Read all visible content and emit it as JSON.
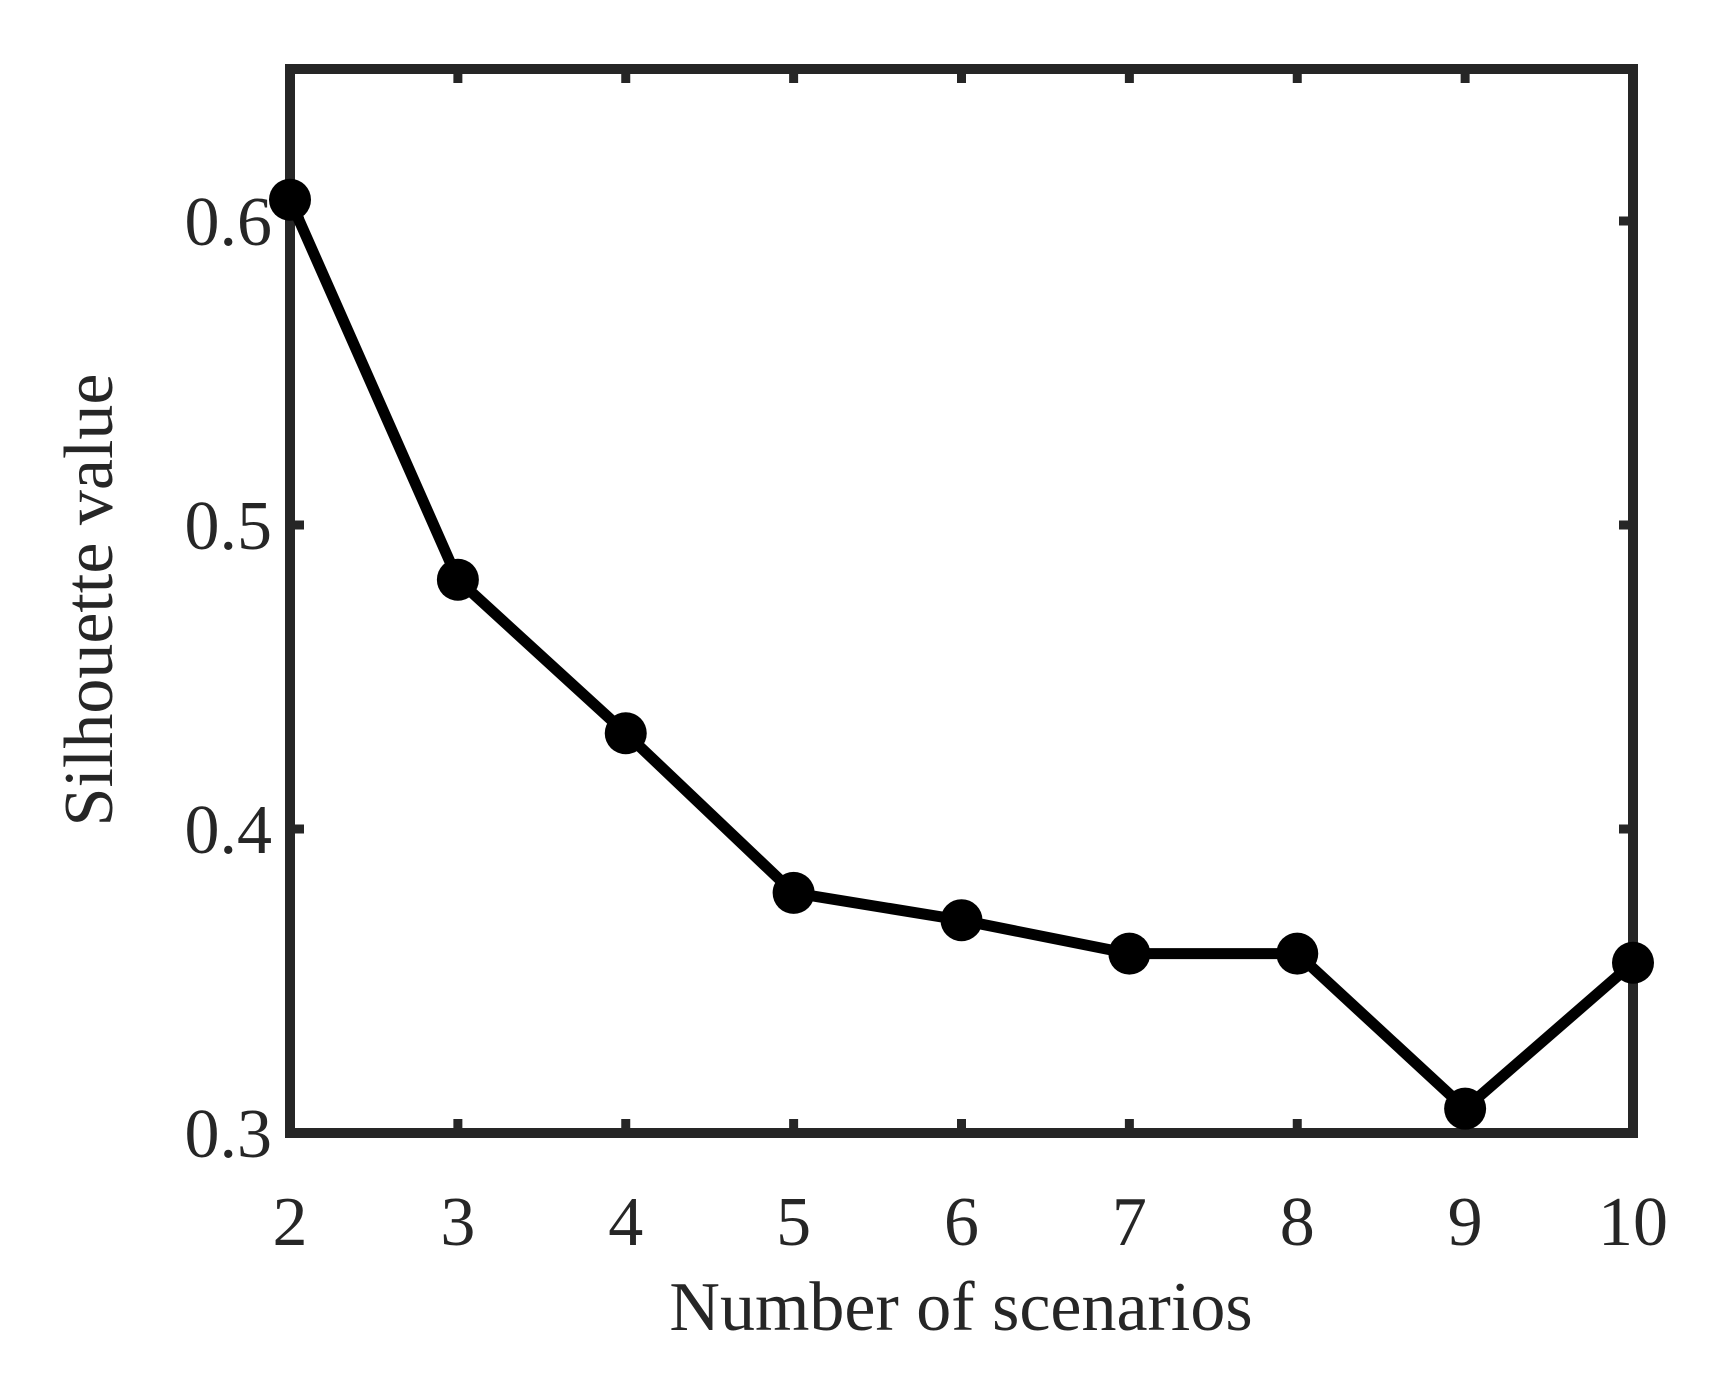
{
  "chart_data": {
    "type": "line",
    "xlabel": "Number of scenarios",
    "ylabel": "Silhouette value",
    "x": [
      2,
      3,
      4,
      5,
      6,
      7,
      8,
      9,
      10
    ],
    "values": [
      0.607,
      0.482,
      0.4315,
      0.379,
      0.37,
      0.359,
      0.359,
      0.308,
      0.356
    ],
    "color": "#000000",
    "xlim": [
      2,
      10
    ],
    "xticks": [
      2,
      3,
      4,
      5,
      6,
      7,
      8,
      9,
      10
    ],
    "ylim": [
      0.3,
      0.65
    ],
    "yticks": [
      0.3,
      0.4,
      0.5,
      0.6
    ]
  }
}
